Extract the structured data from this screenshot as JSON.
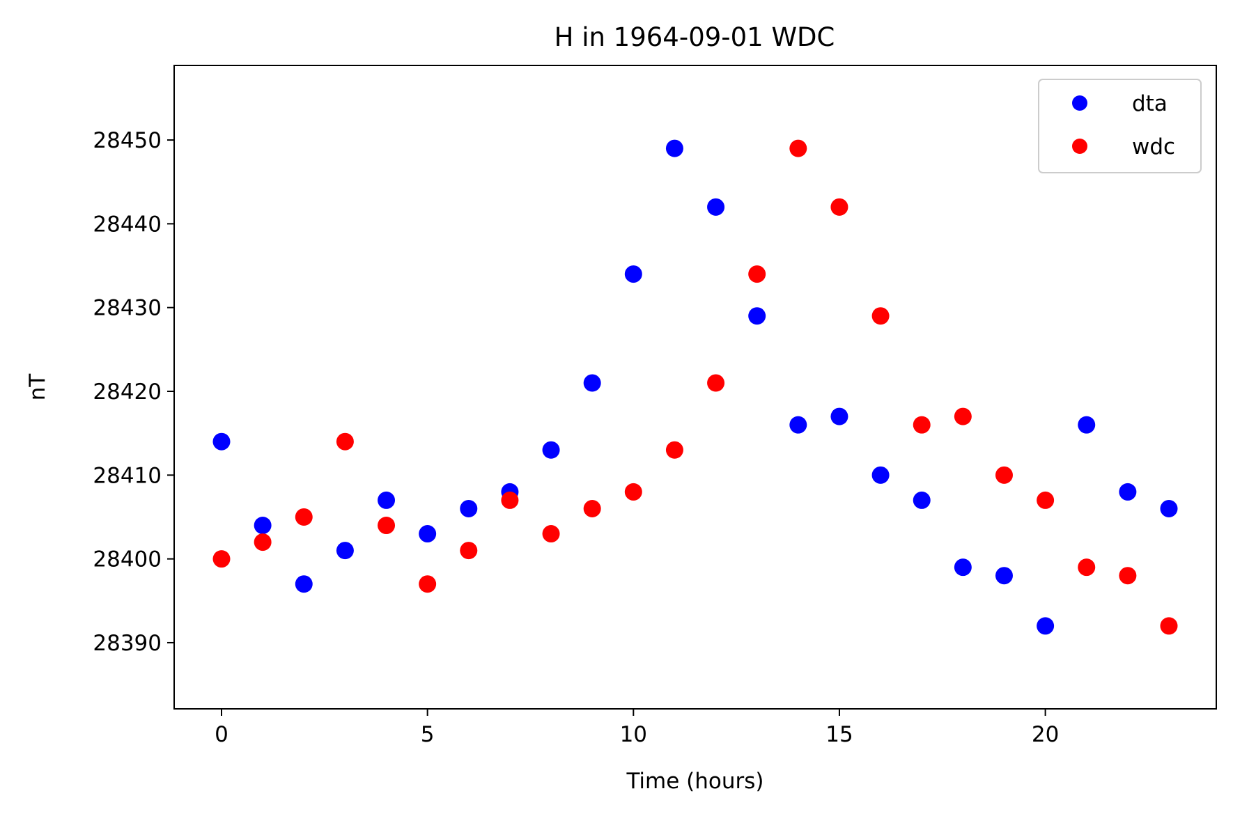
{
  "chart_data": {
    "type": "scatter",
    "title": "H in 1964-09-01 WDC",
    "xlabel": "Time (hours)",
    "ylabel": "nT",
    "xlim": [
      -1.15,
      24.15
    ],
    "ylim": [
      28382.1,
      28458.9
    ],
    "xticks": [
      0,
      5,
      10,
      15,
      20
    ],
    "yticks": [
      28390,
      28400,
      28410,
      28420,
      28430,
      28440,
      28450
    ],
    "grid": false,
    "legend_position": "top-right",
    "x": [
      0,
      1,
      2,
      3,
      4,
      5,
      6,
      7,
      8,
      9,
      10,
      11,
      12,
      13,
      14,
      15,
      16,
      17,
      18,
      19,
      20,
      21,
      22,
      23
    ],
    "series": [
      {
        "name": "dta",
        "color": "#0000ff",
        "values": [
          28414,
          28404,
          28397,
          28401,
          28407,
          28403,
          28406,
          28408,
          28413,
          28421,
          28434,
          28449,
          28442,
          28429,
          28416,
          28417,
          28410,
          28407,
          28399,
          28398,
          28392,
          28416,
          28408,
          28406
        ]
      },
      {
        "name": "wdc",
        "color": "#ff0000",
        "values": [
          28400,
          28402,
          28405,
          28414,
          28404,
          28397,
          28401,
          28407,
          28403,
          28406,
          28408,
          28413,
          28421,
          28434,
          28449,
          28442,
          28429,
          28416,
          28417,
          28410,
          28407,
          28399,
          28398,
          28392
        ]
      }
    ]
  }
}
